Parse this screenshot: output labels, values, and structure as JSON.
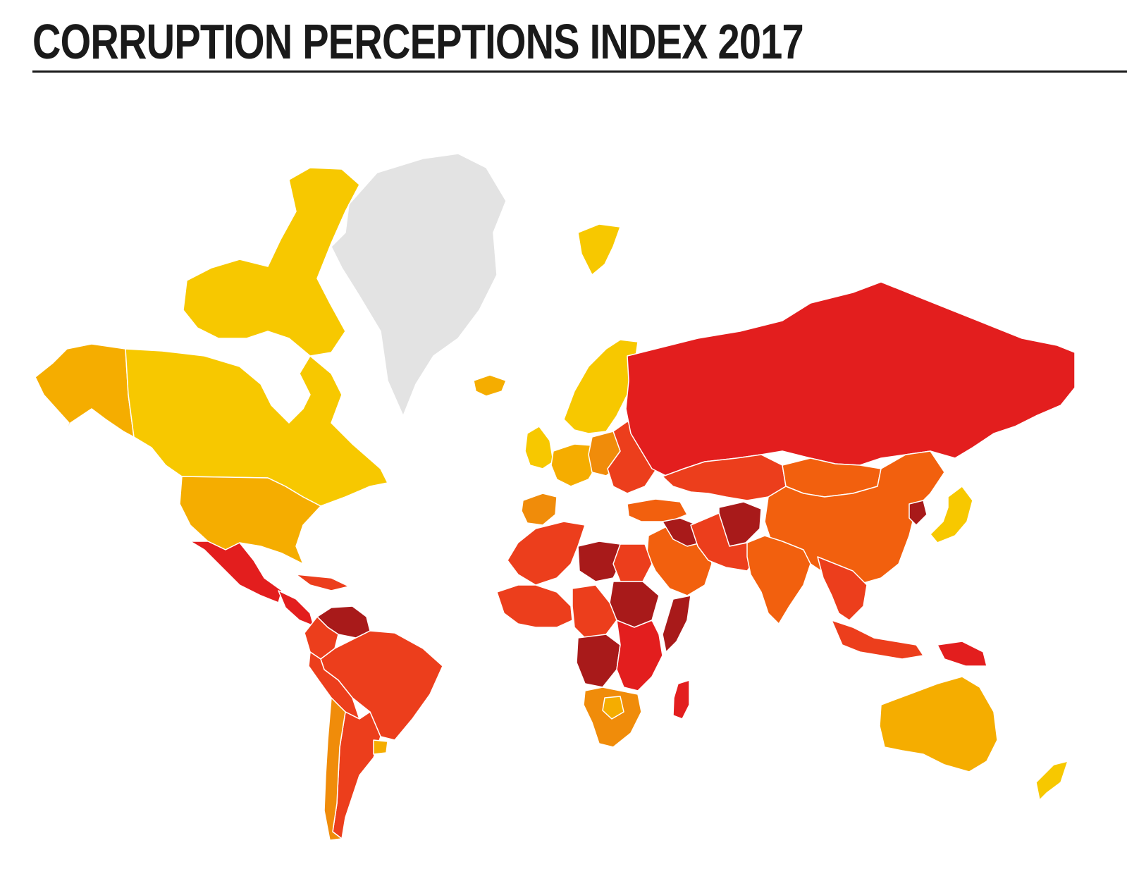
{
  "title": "CORRUPTION PERCEPTIONS INDEX 2017",
  "palette": {
    "very_clean": "#f7c800",
    "clean": "#f5ad00",
    "mid_clean": "#f08c0a",
    "mid": "#f2600e",
    "corrupt": "#ec3e1c",
    "very_corrupt": "#e31e1e",
    "most_corrupt": "#a81a1a",
    "no_data": "#e3e3e3"
  },
  "regions": [
    {
      "name": "Alaska",
      "level": "clean"
    },
    {
      "name": "Canada",
      "level": "very_clean"
    },
    {
      "name": "Canadian Arctic",
      "level": "very_clean"
    },
    {
      "name": "Greenland",
      "level": "no_data"
    },
    {
      "name": "United States",
      "level": "clean"
    },
    {
      "name": "Mexico",
      "level": "very_corrupt"
    },
    {
      "name": "Central America",
      "level": "very_corrupt"
    },
    {
      "name": "Caribbean",
      "level": "corrupt"
    },
    {
      "name": "Venezuela",
      "level": "most_corrupt"
    },
    {
      "name": "Colombia",
      "level": "corrupt"
    },
    {
      "name": "Brazil",
      "level": "corrupt"
    },
    {
      "name": "Peru / Bolivia",
      "level": "corrupt"
    },
    {
      "name": "Argentina",
      "level": "corrupt"
    },
    {
      "name": "Chile",
      "level": "mid_clean"
    },
    {
      "name": "Uruguay",
      "level": "clean"
    },
    {
      "name": "Iceland",
      "level": "clean"
    },
    {
      "name": "Svalbard",
      "level": "very_clean"
    },
    {
      "name": "Scandinavia",
      "level": "very_clean"
    },
    {
      "name": "British Isles",
      "level": "very_clean"
    },
    {
      "name": "Western Europe",
      "level": "clean"
    },
    {
      "name": "Iberia",
      "level": "mid_clean"
    },
    {
      "name": "Central Europe",
      "level": "mid_clean"
    },
    {
      "name": "Eastern Europe",
      "level": "corrupt"
    },
    {
      "name": "Russia",
      "level": "very_corrupt"
    },
    {
      "name": "Turkey",
      "level": "mid"
    },
    {
      "name": "Central Asia",
      "level": "corrupt"
    },
    {
      "name": "Mongolia",
      "level": "mid"
    },
    {
      "name": "China",
      "level": "mid"
    },
    {
      "name": "North Korea",
      "level": "most_corrupt"
    },
    {
      "name": "Japan",
      "level": "very_clean"
    },
    {
      "name": "Middle East",
      "level": "mid"
    },
    {
      "name": "Iraq / Syria",
      "level": "most_corrupt"
    },
    {
      "name": "Afghanistan",
      "level": "most_corrupt"
    },
    {
      "name": "Iran / Pakistan",
      "level": "corrupt"
    },
    {
      "name": "India",
      "level": "mid"
    },
    {
      "name": "Southeast Asia",
      "level": "corrupt"
    },
    {
      "name": "Indonesia",
      "level": "corrupt"
    },
    {
      "name": "Papua New Guinea",
      "level": "very_corrupt"
    },
    {
      "name": "Australia",
      "level": "clean"
    },
    {
      "name": "New Zealand",
      "level": "very_clean"
    },
    {
      "name": "North Africa",
      "level": "corrupt"
    },
    {
      "name": "Libya",
      "level": "most_corrupt"
    },
    {
      "name": "Egypt",
      "level": "corrupt"
    },
    {
      "name": "Sudan",
      "level": "most_corrupt"
    },
    {
      "name": "Somalia",
      "level": "most_corrupt"
    },
    {
      "name": "West Africa",
      "level": "corrupt"
    },
    {
      "name": "Central Africa",
      "level": "corrupt"
    },
    {
      "name": "DR Congo",
      "level": "most_corrupt"
    },
    {
      "name": "East Africa",
      "level": "very_corrupt"
    },
    {
      "name": "Southern Africa",
      "level": "mid_clean"
    },
    {
      "name": "Botswana",
      "level": "clean"
    },
    {
      "name": "Madagascar",
      "level": "very_corrupt"
    }
  ]
}
